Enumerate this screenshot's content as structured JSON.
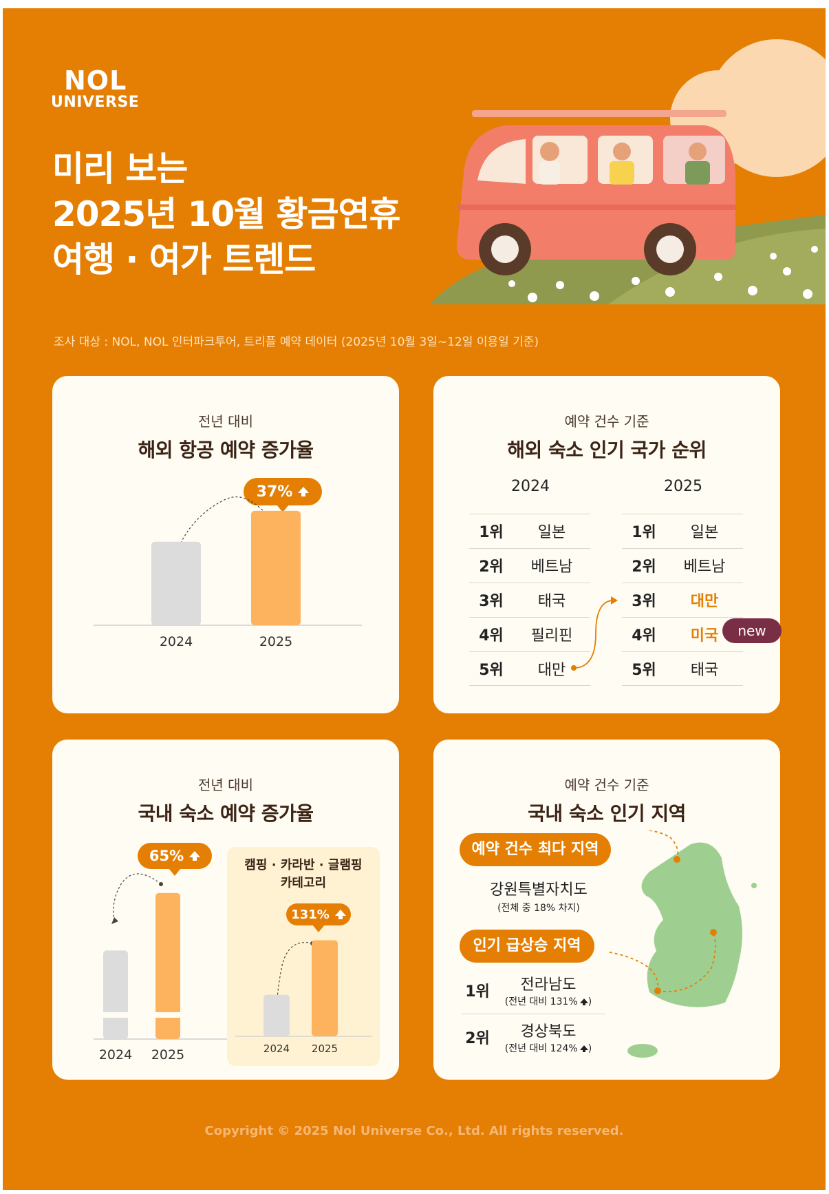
{
  "brand": {
    "logo_line1": "NOL",
    "logo_line2": "UNIVERSE"
  },
  "headline": [
    "미리 보는",
    "2025년 10월 황금연휴",
    "여행 · 여가 트렌드"
  ],
  "survey_note": "조사 대상 : NOL, NOL 인터파크투어, 트리플 예약 데이터 (2025년 10월 3일~12일 이용일 기준)",
  "cards": {
    "overseas_flight": {
      "subtitle": "전년 대비",
      "title": "해외 항공 예약 증가율",
      "badge": "37%"
    },
    "overseas_stay_rank": {
      "subtitle": "예약 건수 기준",
      "title": "해외 숙소 인기 국가 순위",
      "year_a": "2024",
      "year_b": "2025",
      "new_badge": "new",
      "rows_a": [
        {
          "rank": "1위",
          "country": "일본"
        },
        {
          "rank": "2위",
          "country": "베트남"
        },
        {
          "rank": "3위",
          "country": "태국"
        },
        {
          "rank": "4위",
          "country": "필리핀"
        },
        {
          "rank": "5위",
          "country": "대만"
        }
      ],
      "rows_b": [
        {
          "rank": "1위",
          "country": "일본"
        },
        {
          "rank": "2위",
          "country": "베트남"
        },
        {
          "rank": "3위",
          "country": "대만"
        },
        {
          "rank": "4위",
          "country": "미국"
        },
        {
          "rank": "5위",
          "country": "태국"
        }
      ]
    },
    "domestic_stay": {
      "subtitle": "전년 대비",
      "title": "국내 숙소 예약 증가율",
      "badge": "65%",
      "category_title_1": "캠핑 · 카라반 · 글램핑",
      "category_title_2": "카테고리",
      "category_badge": "131%"
    },
    "domestic_region": {
      "subtitle": "예약 건수 기준",
      "title": "국내 숙소 인기 지역",
      "top_label": "예약 건수 최다 지역",
      "top_region": "강원특별자치도",
      "top_note": "(전체 중 18% 차지)",
      "rising_label": "인기 급상승 지역",
      "rising": [
        {
          "rank": "1위",
          "region": "전라남도",
          "note": "(전년 대비 131%"
        },
        {
          "rank": "2위",
          "region": "경상북도",
          "note": "(전년 대비 124%"
        }
      ],
      "note_close": ")"
    }
  },
  "chart_data": [
    {
      "type": "bar",
      "categories": [
        "2024",
        "2025"
      ],
      "values": [
        100,
        137
      ],
      "ylim": [
        0,
        160
      ],
      "annotation": "37%"
    },
    {
      "type": "bar",
      "categories": [
        "2024",
        "2025"
      ],
      "values": [
        100,
        165
      ],
      "ylim": [
        0,
        175
      ],
      "axis_break": true,
      "annotation": "65%"
    },
    {
      "type": "bar",
      "categories": [
        "2024",
        "2025"
      ],
      "values": [
        100,
        231
      ],
      "ylim": [
        0,
        245
      ],
      "annotation": "131%"
    }
  ],
  "footer": "Copyright © 2025 Nol Universe Co., Ltd. All rights reserved.",
  "colors": {
    "background": "#E57F04",
    "card": "#FFFCF3",
    "bar_prev": "#DCDCDC",
    "bar_curr": "#FDB25E",
    "accent_dark": "#7A2E45",
    "map": "#9ECF91"
  }
}
